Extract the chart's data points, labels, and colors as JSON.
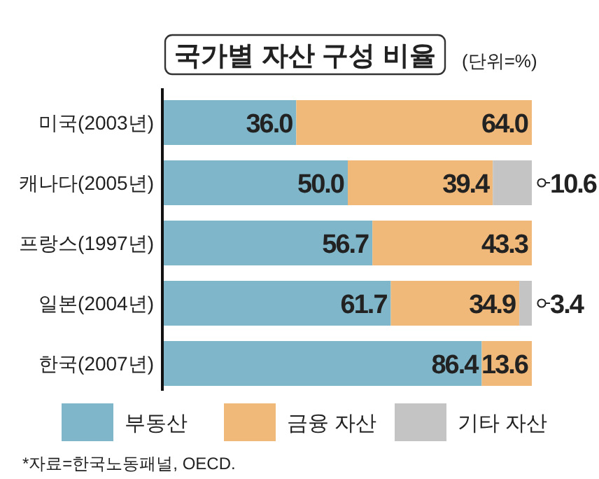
{
  "chart_data": {
    "type": "bar",
    "orientation": "horizontal",
    "stacked": true,
    "title": "국가별 자산 구성 비율",
    "subtitle": "(단위=%)",
    "categories": [
      "미국(2003년)",
      "캐나다(2005년)",
      "프랑스(1997년)",
      "일본(2004년)",
      "한국(2007년)"
    ],
    "series": [
      {
        "name": "부동산",
        "color": "#7fb6ca",
        "values": [
          36.0,
          50.0,
          56.7,
          61.7,
          86.4
        ],
        "value_labels": [
          "36.0",
          "50.0",
          "56.7",
          "61.7",
          "86.4"
        ]
      },
      {
        "name": "금융 자산",
        "color": "#f0b979",
        "values": [
          64.0,
          39.4,
          43.3,
          34.9,
          13.6
        ],
        "value_labels": [
          "64.0",
          "39.4",
          "43.3",
          "34.9",
          "13.6"
        ]
      },
      {
        "name": "기타 자산",
        "color": "#c4c4c4",
        "values": [
          null,
          10.6,
          null,
          3.4,
          null
        ],
        "value_labels": [
          null,
          "10.6",
          null,
          "3.4",
          null
        ]
      }
    ],
    "tick_labels": "y",
    "legend": "bottom",
    "annotations": [
      "*자료=한국노동패널, OECD."
    ]
  }
}
